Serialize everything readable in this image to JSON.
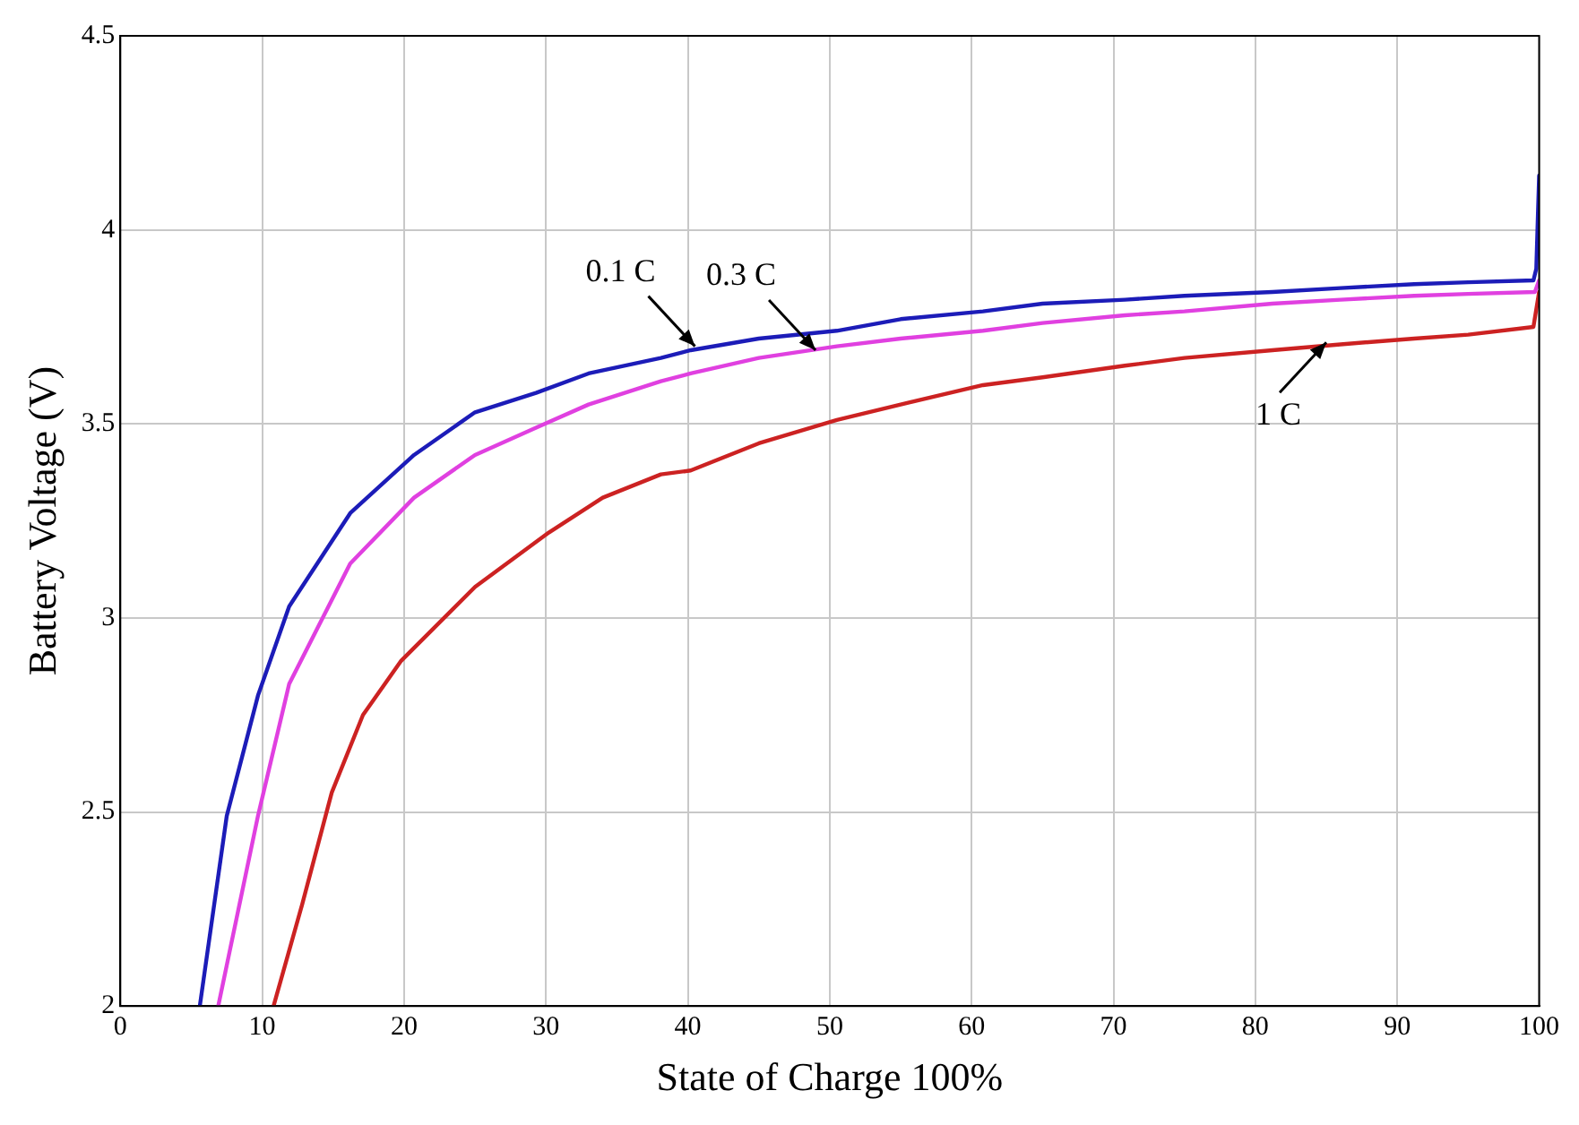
{
  "chart_data": {
    "type": "line",
    "xlabel": "State of Charge 100%",
    "ylabel": "Battery Voltage (V)",
    "xlim": [
      0,
      100
    ],
    "xticks": [
      0,
      10,
      20,
      30,
      40,
      50,
      60,
      70,
      80,
      90,
      100
    ],
    "ylim": [
      2,
      4.5
    ],
    "yticks": [
      2,
      2.5,
      3,
      3.5,
      4,
      4.5
    ],
    "grid": true,
    "legend": false,
    "marker": "none",
    "line_style": "solid",
    "series": [
      {
        "color": "#1c1cb8",
        "x": [
          5.6,
          7.5,
          9.7,
          11.9,
          16.2,
          20.7,
          25,
          29.3,
          33,
          38.1,
          40.2,
          45,
          50.5,
          55,
          60.8,
          65,
          70.8,
          75,
          81.2,
          86,
          91.2,
          95,
          99.6,
          99.8,
          100
        ],
        "values": [
          2.0,
          2.49,
          2.8,
          3.03,
          3.27,
          3.42,
          3.53,
          3.58,
          3.63,
          3.67,
          3.69,
          3.72,
          3.74,
          3.77,
          3.79,
          3.81,
          3.82,
          3.83,
          3.84,
          3.85,
          3.86,
          3.865,
          3.87,
          3.9,
          4.14
        ]
      },
      {
        "color": "#e040e0",
        "x": [
          6.9,
          9.7,
          11.9,
          16.2,
          20.7,
          25,
          29.3,
          33,
          38.1,
          40.2,
          45,
          50.5,
          55,
          60.8,
          65,
          70.8,
          75,
          81.2,
          86,
          91.2,
          95,
          99.7,
          100
        ],
        "values": [
          2.0,
          2.49,
          2.83,
          3.14,
          3.31,
          3.42,
          3.49,
          3.55,
          3.61,
          3.63,
          3.67,
          3.7,
          3.72,
          3.74,
          3.76,
          3.78,
          3.79,
          3.81,
          3.82,
          3.83,
          3.835,
          3.84,
          3.87
        ]
      },
      {
        "color": "#cc2222",
        "x": [
          10.8,
          12.8,
          14.9,
          17.1,
          19.8,
          25,
          30.2,
          34,
          38.1,
          40.2,
          45,
          50.5,
          55,
          60.8,
          65,
          70.8,
          75,
          81.2,
          86,
          91.2,
          95,
          99.6,
          100
        ],
        "values": [
          2.0,
          2.26,
          2.55,
          2.75,
          2.89,
          3.08,
          3.22,
          3.31,
          3.37,
          3.38,
          3.45,
          3.51,
          3.55,
          3.6,
          3.62,
          3.65,
          3.67,
          3.69,
          3.705,
          3.72,
          3.73,
          3.75,
          3.84
        ]
      }
    ],
    "annotations": [
      {
        "text": "0.1 C",
        "x": 40.5,
        "y": 3.7
      },
      {
        "text": "0.3 C",
        "x": 49,
        "y": 3.69
      },
      {
        "text": "1 C",
        "x": 85,
        "y": 3.71
      }
    ]
  }
}
